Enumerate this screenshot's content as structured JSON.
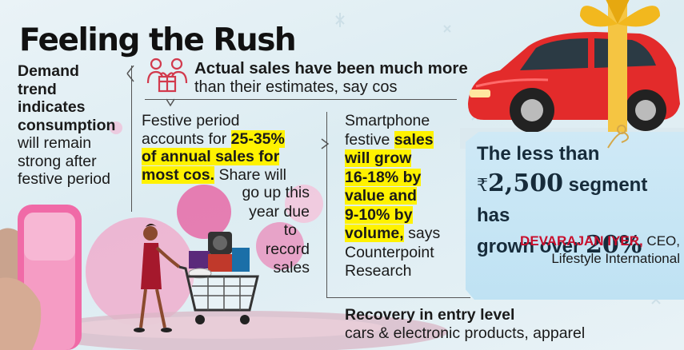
{
  "headline": "Feeling the Rush",
  "demand": {
    "bold": [
      "Demand",
      "trend",
      "indicates",
      "consumption"
    ],
    "rest": [
      "will remain",
      "strong after",
      "festive period"
    ]
  },
  "sales": {
    "bold": "Actual sales have been much more",
    "rest": "than their estimates, say cos"
  },
  "festive": {
    "line1": "Festive period",
    "line2_a": "accounts for ",
    "line2_hl": "25-35%",
    "line3_hl": "of annual sales for",
    "line4_hl": "most cos.",
    "line4_b": " Share will",
    "line5": "go up this",
    "line6": "year due",
    "line7": "to",
    "line8": "record",
    "line9": "sales"
  },
  "smartphone": {
    "line1": "Smartphone",
    "line2_a": "festive ",
    "line2_hl": "sales",
    "line3_hl": "will grow",
    "line4_hl": "16-18% by",
    "line5_hl": "value and",
    "line6_hl": "9-10% by",
    "line7_hl": "volume,",
    "line7_b": " says",
    "line8": "Counterpoint",
    "line9": "Research"
  },
  "recovery": {
    "bold": "Recovery in entry level",
    "rest": "cars & electronic products, apparel"
  },
  "stat": {
    "line1": "The less than",
    "rupee": "₹",
    "amount": "2,500",
    "line2_b": " segment has",
    "line3_a": "grown over ",
    "percent": "20%"
  },
  "speaker": {
    "name": "DEVARAJAN IYER,",
    "role": " CEO,",
    "company": "Lifestyle International"
  },
  "icons": [
    "people-gift-icon",
    "shopping-cart-illustration",
    "smartphone-illustration",
    "car-gift-illustration"
  ],
  "colors": {
    "highlight": "#fff200",
    "name_red": "#c8102e",
    "car_red": "#e32b2b",
    "ribbon": "#f5c542"
  }
}
